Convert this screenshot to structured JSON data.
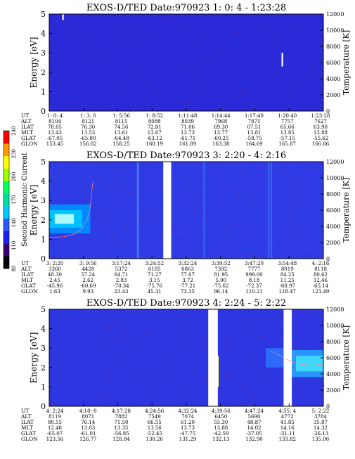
{
  "colorbar": {
    "label": "Second Harmonic Current",
    "ticks": [
      "80",
      "110",
      "140",
      "170",
      "200",
      "230",
      "240"
    ],
    "colors": [
      "#000000",
      "#3a0070",
      "#1e1ef0",
      "#2f55ff",
      "#00c8ff",
      "#00e0a0",
      "#00ff60",
      "#a0ff00",
      "#ffff00",
      "#ff9900",
      "#ff0000"
    ]
  },
  "chart_data": [
    {
      "type": "heatmap",
      "title": "EXOS-D/TED   Date:970923  1: 0: 4 - 1:23:28",
      "ylabel": "Energy [eV]",
      "y2label": "Temperature [K]",
      "ylim": [
        0,
        5
      ],
      "y_ticks": [
        "0",
        "1",
        "2",
        "3",
        "4",
        "5"
      ],
      "y2lim": [
        0,
        12000
      ],
      "y2_ticks": [
        "0",
        "2000",
        "4000",
        "6000",
        "8000",
        "10000",
        "12000"
      ],
      "background": "#2a2ad8",
      "data_gaps": [],
      "bright_features": [
        {
          "t": 0.05,
          "e0": 4.7,
          "e1": 5.0,
          "color": "#ffffff"
        },
        {
          "t": 0.85,
          "e0": 2.3,
          "e1": 3.0,
          "color": "#ffffff"
        }
      ],
      "bands": [],
      "columns": [
        {
          "UT": "1: 0: 4",
          "ALT": "8104",
          "ILAT": "78.05",
          "MLT": "13.43",
          "GLAT": "-67.05",
          "GLON": "153.45"
        },
        {
          "UT": "1: 3: 0",
          "ALT": "8121",
          "ILAT": "76.30",
          "MLT": "13.53",
          "GLAT": "-65.80",
          "GLON": "156.02"
        },
        {
          "UT": "1: 5:56",
          "ALT": "8115",
          "ILAT": "74.56",
          "MLT": "13.61",
          "GLAT": "-64.48",
          "GLON": "158.25"
        },
        {
          "UT": "1: 8:52",
          "ALT": "8088",
          "ILAT": "72.81",
          "MLT": "13.67",
          "GLAT": "-63.12",
          "GLON": "160.19"
        },
        {
          "UT": "1:11:48",
          "ALT": "8039",
          "ILAT": "71.06",
          "MLT": "13.73",
          "GLAT": "-61.71",
          "GLON": "161.89"
        },
        {
          "UT": "1:14:44",
          "ALT": "7968",
          "ILAT": "69.30",
          "MLT": "13.77",
          "GLAT": "-60.25",
          "GLON": "163.38"
        },
        {
          "UT": "1:17:40",
          "ALT": "7875",
          "ILAT": "67.51",
          "MLT": "13.81",
          "GLAT": "-58.75",
          "GLON": "164.69"
        },
        {
          "UT": "1:20:40",
          "ALT": "7757",
          "ILAT": "65.66",
          "MLT": "13.85",
          "GLAT": "-57.15",
          "GLON": "165.87"
        },
        {
          "UT": "1:23:28",
          "ALT": "7627",
          "ILAT": "63.90",
          "MLT": "13.88",
          "GLAT": "-55.62",
          "GLON": "166.86"
        }
      ]
    },
    {
      "type": "heatmap",
      "title": "EXOS-D/TED   Date:970923  3: 2:20 - 4: 2:16",
      "ylabel": "Energy [eV]",
      "y2label": "Temperature [K]",
      "ylim": [
        0,
        5
      ],
      "y_ticks": [
        "0",
        "1",
        "2",
        "3",
        "4",
        "5"
      ],
      "y2lim": [
        0,
        12000
      ],
      "y2_ticks": [
        "0",
        "2000",
        "4000",
        "6000",
        "8000",
        "10000",
        "12000"
      ],
      "background": "#2f3ce6",
      "data_gaps": [
        {
          "t0": 0.416,
          "t1": 0.445
        }
      ],
      "bright_features": [
        {
          "t": 0.322,
          "e0": 0.0,
          "e1": 5.0,
          "color": "#4a6cf5"
        },
        {
          "t": 0.325,
          "e0": 0.0,
          "e1": 5.0,
          "color": "#4a6cf5"
        },
        {
          "t": 0.565,
          "e0": 0.0,
          "e1": 5.0,
          "color": "#3a63f0"
        },
        {
          "t": 0.8,
          "e0": 0.0,
          "e1": 5.0,
          "color": "#3a63f0"
        },
        {
          "t": 0.81,
          "e0": 0.0,
          "e1": 5.0,
          "color": "#3a63f0"
        }
      ],
      "bands": [
        {
          "t0": 0.0,
          "t1": 0.15,
          "e0": 1.3,
          "e1": 2.8,
          "color": "#0090ff"
        },
        {
          "t0": 0.0,
          "t1": 0.12,
          "e0": 1.6,
          "e1": 2.5,
          "color": "#00c8ff"
        },
        {
          "t0": 0.02,
          "t1": 0.09,
          "e0": 1.8,
          "e1": 2.3,
          "color": "#c0ffff"
        }
      ],
      "temperature": [
        {
          "t": 0.0,
          "T": 2600
        },
        {
          "t": 0.05,
          "T": 2700
        },
        {
          "t": 0.09,
          "T": 3000
        },
        {
          "t": 0.12,
          "T": 3700
        },
        {
          "t": 0.14,
          "T": 5000
        },
        {
          "t": 0.15,
          "T": 6500
        },
        {
          "t": 0.155,
          "T": 8200
        },
        {
          "t": 0.16,
          "T": 9500
        }
      ],
      "columns": [
        {
          "UT": "3: 2:20",
          "ALT": "3360",
          "ILAT": "48.30",
          "MLT": "2.45",
          "GLAT": "-45.96",
          "GLON": "1.63"
        },
        {
          "UT": "3: 9:56",
          "ALT": "4428",
          "ILAT": "57.24",
          "MLT": "2.62",
          "GLAT": "-60.69",
          "GLON": "9.93"
        },
        {
          "UT": "3:17:24",
          "ALT": "5372",
          "ILAT": "64.71",
          "MLT": "2.83",
          "GLAT": "-70.34",
          "GLON": "23.43"
        },
        {
          "UT": "3:24:52",
          "ALT": "6185",
          "ILAT": "71.27",
          "MLT": "3.15",
          "GLAT": "-75.76",
          "GLON": "45.31"
        },
        {
          "UT": "3:32:24",
          "ALT": "6863",
          "ILAT": "77.07",
          "MLT": "3.72",
          "GLAT": "-77.21",
          "GLON": "73.35"
        },
        {
          "UT": "3:39:52",
          "ALT": "7392",
          "ILAT": "81.95",
          "MLT": "5.00",
          "GLAT": "-75.62",
          "GLON": "96.14"
        },
        {
          "UT": "3:47:20",
          "ALT": "7777",
          "ILAT": "999.00",
          "MLT": "8.18",
          "GLAT": "-72.37",
          "GLON": "110.21"
        },
        {
          "UT": "3:54:48",
          "ALT": "8019",
          "ILAT": "84.25",
          "MLT": "11.25",
          "GLAT": "-68.97",
          "GLON": "118.47"
        },
        {
          "UT": "4: 2:16",
          "ALT": "8118",
          "ILAT": "80.62",
          "MLT": "12.46",
          "GLAT": "-65.14",
          "GLON": "123.49"
        }
      ]
    },
    {
      "type": "heatmap",
      "title": "EXOS-D/TED   Date:970923  4: 2:24 - 5: 2:22",
      "ylabel": "Energy [eV]",
      "y2label": "Temperature [K]",
      "ylim": [
        0,
        5
      ],
      "y_ticks": [
        "0",
        "1",
        "2",
        "3",
        "4",
        "5"
      ],
      "y2lim": [
        0,
        12000
      ],
      "y2_ticks": [
        "0",
        "2000",
        "4000",
        "6000",
        "8000",
        "10000",
        "12000"
      ],
      "background": "#2d36e0",
      "data_gaps": [
        {
          "t0": 0.58,
          "t1": 0.615
        },
        {
          "t0": 0.855,
          "t1": 0.885
        }
      ],
      "bright_features": [
        {
          "t": 0.615,
          "e0": 1.0,
          "e1": 2.6,
          "color": "#ffff99"
        }
      ],
      "bands": [
        {
          "t0": 0.885,
          "t1": 1.0,
          "e0": 1.5,
          "e1": 2.9,
          "color": "#2aa0ff"
        },
        {
          "t0": 0.9,
          "t1": 1.0,
          "e0": 1.8,
          "e1": 2.6,
          "color": "#40dfff"
        },
        {
          "t0": 0.79,
          "t1": 0.855,
          "e0": 2.0,
          "e1": 3.0,
          "color": "#2f70ff"
        }
      ],
      "temperature": [
        {
          "t": 0.81,
          "T": 6800
        },
        {
          "t": 0.84,
          "T": 6300
        },
        {
          "t": 0.855,
          "T": 6000
        },
        {
          "t": 0.9,
          "T": 5300
        },
        {
          "t": 0.95,
          "T": 5100
        },
        {
          "t": 1.0,
          "T": 5200
        }
      ],
      "columns": [
        {
          "UT": "4: 2:24",
          "ALT": "8119",
          "ILAT": "80.55",
          "MLT": "12.48",
          "GLAT": "-65.07",
          "GLON": "123.56"
        },
        {
          "UT": "4:10: 0",
          "ALT": "8071",
          "ILAT": "76.14",
          "MLT": "13.03",
          "GLAT": "-61.01",
          "GLON": "126.77"
        },
        {
          "UT": "4:17:28",
          "ALT": "7882",
          "ILAT": "71.50",
          "MLT": "13.35",
          "GLAT": "-56.85",
          "GLON": "128.84"
        },
        {
          "UT": "4:24:56",
          "ALT": "7549",
          "ILAT": "66.55",
          "MLT": "13.56",
          "GLAT": "-52.45",
          "GLON": "130.26"
        },
        {
          "UT": "4:32:24",
          "ALT": "7074",
          "ILAT": "61.20",
          "MLT": "13.73",
          "GLAT": "-47.75",
          "GLON": "131.29"
        },
        {
          "UT": "4:39:56",
          "ALT": "6450",
          "ILAT": "55.30",
          "MLT": "13.88",
          "GLAT": "-42.59",
          "GLON": "132.13"
        },
        {
          "UT": "4:47:24",
          "ALT": "5690",
          "ILAT": "48.87",
          "MLT": "14.02",
          "GLAT": "-37.05",
          "GLON": "132.90"
        },
        {
          "UT": "4:55: 4",
          "ALT": "4772",
          "ILAT": "41.85",
          "MLT": "14.16",
          "GLAT": "-31.11",
          "GLON": "133.82"
        },
        {
          "UT": "5: 2:22",
          "ALT": "3784",
          "ILAT": "35.87",
          "MLT": "14.32",
          "GLAT": "-26.13",
          "GLON": "135.06"
        }
      ]
    }
  ]
}
